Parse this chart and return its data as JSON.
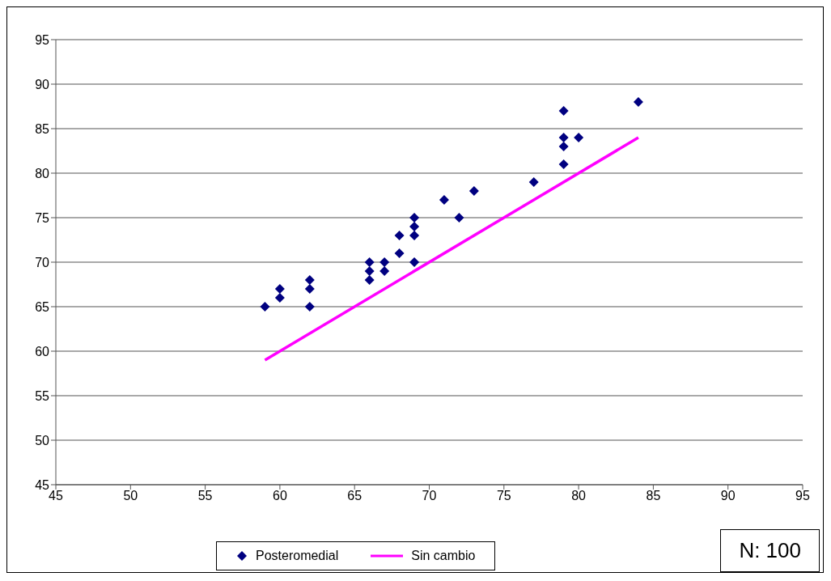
{
  "chart_data": {
    "type": "scatter",
    "xlim": [
      45,
      95
    ],
    "ylim": [
      45,
      95
    ],
    "xticks": [
      45,
      50,
      55,
      60,
      65,
      70,
      75,
      80,
      85,
      90,
      95
    ],
    "yticks": [
      45,
      50,
      55,
      60,
      65,
      70,
      75,
      80,
      85,
      90,
      95
    ],
    "grid": "y",
    "legend": "bottom",
    "annotations": [
      "N: 100"
    ],
    "series": [
      {
        "name": "Posteromedial",
        "marker": "diamond",
        "color": "#000080",
        "x": [
          59,
          60,
          60,
          62,
          62,
          62,
          66,
          66,
          66,
          67,
          67,
          68,
          68,
          69,
          69,
          69,
          69,
          71,
          72,
          73,
          77,
          79,
          79,
          79,
          79,
          80,
          84
        ],
        "values": [
          65,
          66,
          67,
          65,
          67,
          68,
          68,
          69,
          70,
          69,
          70,
          71,
          73,
          70,
          73,
          74,
          75,
          77,
          75,
          78,
          79,
          81,
          83,
          84,
          87,
          84,
          88
        ]
      },
      {
        "name": "Sin cambio",
        "type": "line",
        "marker": "none",
        "line_style": "solid",
        "color": "#ff00ff",
        "x": [
          59,
          84
        ],
        "values": [
          59,
          84
        ]
      }
    ]
  }
}
